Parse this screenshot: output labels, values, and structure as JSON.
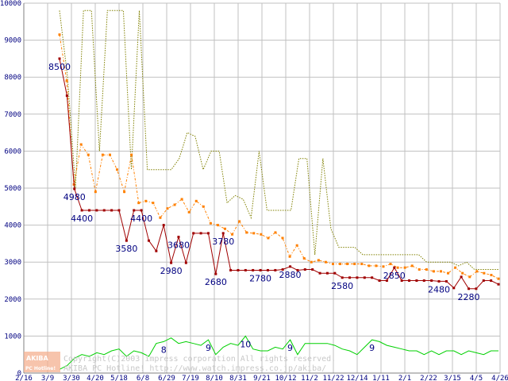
{
  "chart_data": {
    "type": "line",
    "title": "",
    "xlabel": "",
    "ylabel": "",
    "ylim": [
      0,
      10000
    ],
    "yticks": [
      0,
      1000,
      2000,
      3000,
      4000,
      5000,
      6000,
      7000,
      8000,
      9000,
      10000
    ],
    "xtick_labels": [
      "2/16",
      "3/9",
      "3/30",
      "4/20",
      "5/18",
      "6/8",
      "6/29",
      "7/19",
      "8/10",
      "8/31",
      "9/21",
      "10/12",
      "11/2",
      "11/22",
      "12/14",
      "1/11",
      "2/1",
      "2/22",
      "3/15",
      "4/5",
      "4/26"
    ],
    "grid": true,
    "legend": "none",
    "series": [
      {
        "color": "#808000",
        "style": "dotted",
        "values": [
          9800,
          8000,
          5000,
          9800,
          9800,
          6000,
          9800,
          9800,
          9800,
          5500,
          9800,
          5500,
          5500,
          5500,
          5500,
          5800,
          6500,
          6400,
          5500,
          6000,
          6000,
          4600,
          4800,
          4700,
          4200,
          6000,
          4400,
          4400,
          4400,
          4400,
          5800,
          5800,
          3200,
          5800,
          3900,
          3400,
          3400,
          3400,
          3200,
          3200,
          3200,
          3200,
          3200,
          3200,
          3200,
          3200,
          3000,
          3000,
          3000,
          3000,
          2900,
          3000,
          2800,
          2800,
          2800,
          2800
        ]
      },
      {
        "color": "#ff8000",
        "style": "dash-dot",
        "values": [
          9150,
          7900,
          5100,
          6180,
          5900,
          4900,
          5900,
          5900,
          5500,
          4900,
          5900,
          4600,
          4650,
          4600,
          4200,
          4450,
          4550,
          4700,
          4350,
          4650,
          4500,
          4050,
          4000,
          3900,
          3750,
          4100,
          3800,
          3780,
          3750,
          3650,
          3800,
          3650,
          3150,
          3450,
          3100,
          3000,
          3050,
          3000,
          2950,
          2950,
          2950,
          2950,
          2950,
          2900,
          2900,
          2880,
          2950,
          2850,
          2850,
          2900,
          2800,
          2800,
          2750,
          2750,
          2700,
          2850,
          2700,
          2600,
          2750,
          2700,
          2650,
          2550
        ]
      },
      {
        "color": "#a00000",
        "style": "solid",
        "values": [
          8500,
          7500,
          4980,
          4400,
          4400,
          4400,
          4400,
          4400,
          4400,
          3580,
          4400,
          4400,
          3580,
          3300,
          4000,
          2980,
          3680,
          2980,
          3780,
          3780,
          3780,
          2680,
          3780,
          2780,
          2780,
          2780,
          2780,
          2780,
          2780,
          2780,
          2800,
          2880,
          2780,
          2800,
          2800,
          2700,
          2700,
          2700,
          2580,
          2580,
          2580,
          2580,
          2580,
          2500,
          2500,
          2850,
          2500,
          2500,
          2500,
          2500,
          2500,
          2480,
          2480,
          2300,
          2600,
          2280,
          2280,
          2500,
          2500,
          2400
        ]
      },
      {
        "color": "#00d000",
        "style": "solid",
        "values": [
          100,
          200,
          400,
          500,
          450,
          550,
          500,
          600,
          650,
          450,
          600,
          550,
          450,
          800,
          850,
          950,
          800,
          850,
          800,
          750,
          900,
          500,
          700,
          800,
          750,
          1000,
          650,
          600,
          600,
          700,
          650,
          900,
          500,
          800,
          800,
          800,
          800,
          750,
          650,
          600,
          500,
          700,
          900,
          850,
          750,
          700,
          650,
          600,
          600,
          500,
          600,
          500,
          600,
          600,
          500,
          600,
          550,
          500,
          600,
          600
        ]
      }
    ],
    "annotations": [
      {
        "text": "8500",
        "series": 2,
        "index": 0
      },
      {
        "text": "4980",
        "series": 2,
        "index": 2
      },
      {
        "text": "4400",
        "series": 2,
        "index": 3
      },
      {
        "text": "3580",
        "series": 2,
        "index": 9
      },
      {
        "text": "4400",
        "series": 2,
        "index": 11
      },
      {
        "text": "2980",
        "series": 2,
        "index": 15
      },
      {
        "text": "3680",
        "series": 2,
        "index": 16
      },
      {
        "text": "2680",
        "series": 2,
        "index": 21
      },
      {
        "text": "3780",
        "series": 2,
        "index": 22
      },
      {
        "text": "2780",
        "series": 2,
        "index": 27
      },
      {
        "text": "2880",
        "series": 2,
        "index": 31
      },
      {
        "text": "2580",
        "series": 2,
        "index": 38
      },
      {
        "text": "2850",
        "series": 2,
        "index": 45
      },
      {
        "text": "2480",
        "series": 2,
        "index": 51
      },
      {
        "text": "2280",
        "series": 2,
        "index": 55
      },
      {
        "text": "8",
        "series": 3,
        "index": 14
      },
      {
        "text": "9",
        "series": 3,
        "index": 20
      },
      {
        "text": "10",
        "series": 3,
        "index": 25
      },
      {
        "text": "9",
        "series": 3,
        "index": 31
      },
      {
        "text": "9",
        "series": 3,
        "index": 42
      }
    ]
  },
  "watermark": {
    "line1": "Copyright(C)2003 impress corporation All rights reserved.",
    "line2": "AKIBA PC Hotline!  http://www.watch.impress.co.jp/akiba/",
    "logo_top": "AKIBA",
    "logo_bottom": "PC Hotline!"
  }
}
